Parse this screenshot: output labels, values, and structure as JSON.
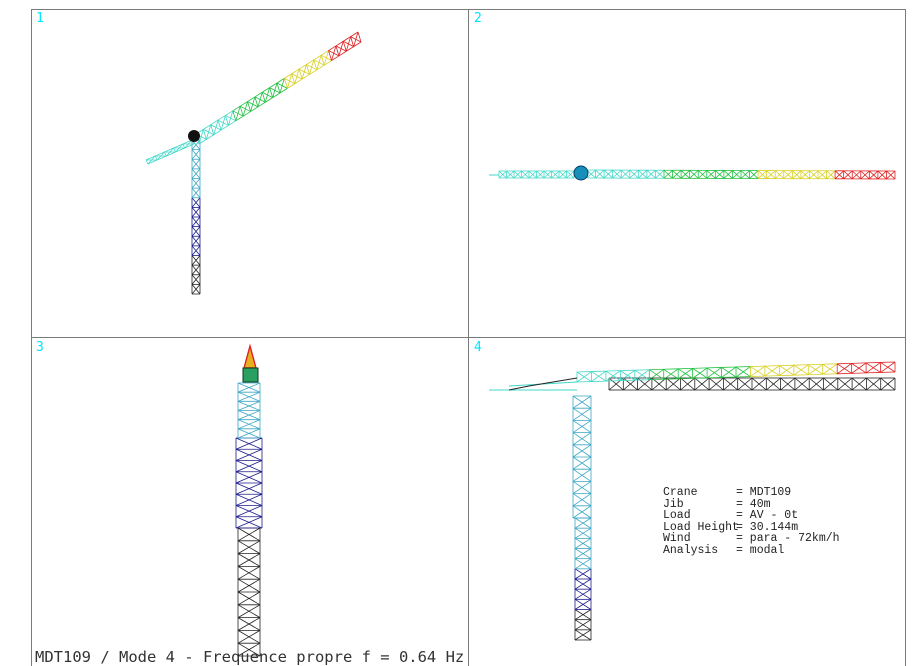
{
  "viewports": [
    {
      "id": "1"
    },
    {
      "id": "2"
    },
    {
      "id": "3"
    },
    {
      "id": "4"
    }
  ],
  "info": [
    {
      "key": "Crane",
      "value": "= MDT109"
    },
    {
      "key": "Jib",
      "value": "= 40m"
    },
    {
      "key": "Load",
      "value": "= AV - 0t"
    },
    {
      "key": "Load Height",
      "value": "= 30.144m"
    },
    {
      "key": "Wind",
      "value": "= para - 72km/h"
    },
    {
      "key": "Analysis",
      "value": "= modal"
    }
  ],
  "footer": "MDT109 / Mode 4 - Frequence propre f = 0.64 Hz",
  "colors": {
    "viewport_number": "#00e5ff",
    "border": "#7a7a7a",
    "mast_base": "#222222",
    "mast_mid": "#1a1a8c",
    "mast_upper": "#3aa6c4",
    "jib_root": "#40d8c8",
    "jib_mid": "#20c040",
    "jib_yellow": "#d8d020",
    "jib_tip": "#e02020"
  }
}
